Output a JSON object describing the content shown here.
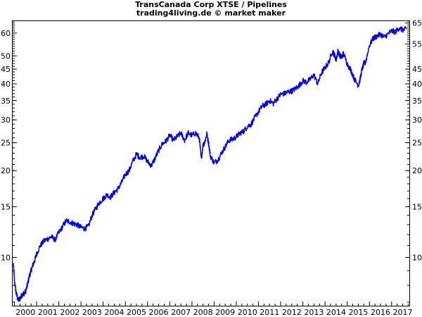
{
  "title": "TransCanada Corp XTSE / Pipelines",
  "subtitle": "trading4living.de © market maker",
  "chart_data": {
    "type": "line",
    "title": "TransCanada Corp XTSE / Pipelines",
    "subtitle": "trading4living.de © market maker",
    "y_scale": "log",
    "ylim": [
      6.8,
      66
    ],
    "xlim": [
      1999.92,
      2017.8
    ],
    "y_ticks_left": [
      10,
      15,
      20,
      25,
      30,
      35,
      40,
      45,
      50,
      60
    ],
    "y_ticks_right": [
      10,
      15,
      20,
      25,
      30,
      35,
      40,
      45,
      55,
      65
    ],
    "x_ticks": [
      {
        "x": 2000.5,
        "label": "2000"
      },
      {
        "x": 2001.5,
        "label": "2001"
      },
      {
        "x": 2002.5,
        "label": "2002"
      },
      {
        "x": 2003.5,
        "label": "2003"
      },
      {
        "x": 2004.5,
        "label": "2004"
      },
      {
        "x": 2005.5,
        "label": "2005"
      },
      {
        "x": 2006.5,
        "label": "2006"
      },
      {
        "x": 2007.5,
        "label": "2007"
      },
      {
        "x": 2008.5,
        "label": "2008"
      },
      {
        "x": 2009.5,
        "label": "2009"
      },
      {
        "x": 2010.5,
        "label": "2010"
      },
      {
        "x": 2011.5,
        "label": "2011"
      },
      {
        "x": 2012.5,
        "label": "2012"
      },
      {
        "x": 2013.5,
        "label": "2013"
      },
      {
        "x": 2014.5,
        "label": "2014"
      },
      {
        "x": 2015.5,
        "label": "2015"
      },
      {
        "x": 2016.5,
        "label": "2016"
      },
      {
        "x": 2017.5,
        "label": "2017"
      }
    ],
    "grid": false,
    "line_color": "#0000e6",
    "series": [
      {
        "x": [
          1999.95,
          2000.0,
          2000.08,
          2000.17,
          2000.25,
          2000.33,
          2000.42,
          2000.5,
          2000.58,
          2000.67,
          2000.75,
          2000.83,
          2000.92,
          2001.0,
          2001.17,
          2001.33,
          2001.5,
          2001.67,
          2001.83,
          2002.0,
          2002.17,
          2002.33,
          2002.5,
          2002.67,
          2002.83,
          2003.0,
          2003.17,
          2003.33,
          2003.5,
          2003.67,
          2003.83,
          2004.0,
          2004.17,
          2004.33,
          2004.5,
          2004.67,
          2004.83,
          2005.0,
          2005.17,
          2005.33,
          2005.5,
          2005.67,
          2005.83,
          2006.0,
          2006.17,
          2006.33,
          2006.5,
          2006.67,
          2006.83,
          2007.0,
          2007.17,
          2007.33,
          2007.5,
          2007.67,
          2007.83,
          2008.0,
          2008.17,
          2008.33,
          2008.42,
          2008.5,
          2008.58,
          2008.67,
          2008.75,
          2008.83,
          2009.0,
          2009.17,
          2009.33,
          2009.5,
          2009.67,
          2009.83,
          2010.0,
          2010.17,
          2010.33,
          2010.5,
          2010.67,
          2010.83,
          2011.0,
          2011.17,
          2011.33,
          2011.5,
          2011.67,
          2011.83,
          2012.0,
          2012.17,
          2012.33,
          2012.5,
          2012.67,
          2012.83,
          2013.0,
          2013.17,
          2013.33,
          2013.5,
          2013.67,
          2013.83,
          2014.0,
          2014.17,
          2014.33,
          2014.42,
          2014.5,
          2014.58,
          2014.67,
          2014.75,
          2014.83,
          2015.0,
          2015.17,
          2015.33,
          2015.5,
          2015.58,
          2015.67,
          2015.75,
          2015.83,
          2016.0,
          2016.17,
          2016.33,
          2016.5,
          2016.67,
          2016.83,
          2017.0,
          2017.17,
          2017.33,
          2017.5,
          2017.67
        ],
        "y": [
          9.5,
          8.3,
          7.5,
          7.1,
          7.2,
          7.4,
          7.5,
          7.6,
          8.0,
          8.6,
          9.0,
          9.4,
          9.8,
          10.3,
          11.0,
          11.4,
          11.6,
          11.8,
          11.5,
          12.2,
          12.8,
          13.4,
          13.3,
          13.1,
          13.0,
          12.7,
          12.6,
          12.8,
          14.0,
          14.8,
          15.5,
          16.0,
          16.5,
          16.2,
          16.8,
          17.3,
          18.2,
          19.4,
          20.0,
          21.5,
          22.8,
          22.2,
          22.5,
          21.5,
          20.8,
          22.0,
          23.5,
          24.8,
          25.3,
          26.5,
          25.5,
          26.2,
          27.0,
          25.5,
          27.0,
          26.5,
          27.0,
          26.0,
          22.0,
          24.5,
          25.2,
          26.8,
          25.0,
          22.5,
          21.3,
          21.8,
          23.0,
          24.2,
          25.5,
          25.7,
          26.2,
          27.0,
          27.4,
          28.5,
          29.0,
          30.5,
          32.0,
          33.5,
          34.0,
          35.0,
          34.2,
          35.5,
          36.8,
          37.0,
          37.5,
          37.8,
          38.5,
          39.5,
          41.0,
          40.5,
          41.5,
          43.0,
          40.0,
          43.5,
          45.5,
          47.5,
          52.0,
          50.5,
          48.5,
          52.0,
          50.0,
          49.5,
          51.0,
          47.0,
          44.5,
          41.5,
          39.5,
          41.5,
          45.0,
          47.0,
          47.5,
          54.5,
          57.5,
          58.5,
          59.5,
          58.0,
          59.5,
          61.0,
          60.5,
          62.5,
          61.5,
          62.0
        ]
      }
    ]
  }
}
